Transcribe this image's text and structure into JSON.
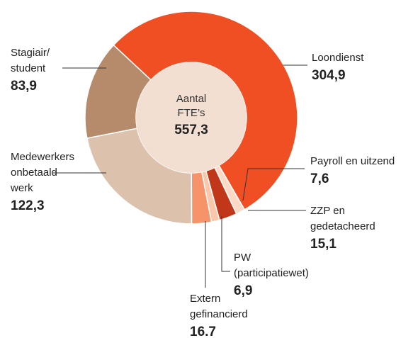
{
  "chart_data": {
    "type": "donut",
    "categories": [
      [
        "Loondienst"
      ],
      [
        "Payroll en uitzend"
      ],
      [
        "ZZP en",
        "gedetacheerd"
      ],
      [
        "PW",
        "(participatiewet)"
      ],
      [
        "Extern",
        "gefinancierd"
      ],
      [
        "Medewerkers",
        "onbetaald",
        "werk"
      ],
      [
        "Stagiair/",
        "student"
      ]
    ],
    "values": [
      304.9,
      7.6,
      15.1,
      6.9,
      16.7,
      122.3,
      83.9
    ],
    "value_labels": [
      "304,9",
      "7,6",
      "15,1",
      "6,9",
      "16.7",
      "122,3",
      "83,9"
    ],
    "colors": [
      "#f04e23",
      "#fbd9c4",
      "#c0371a",
      "#f9c8ac",
      "#f7936a",
      "#dcc1ad",
      "#b58b6c"
    ],
    "center_title": [
      "Aantal",
      "FTE’s"
    ],
    "center_value": "557,3"
  }
}
